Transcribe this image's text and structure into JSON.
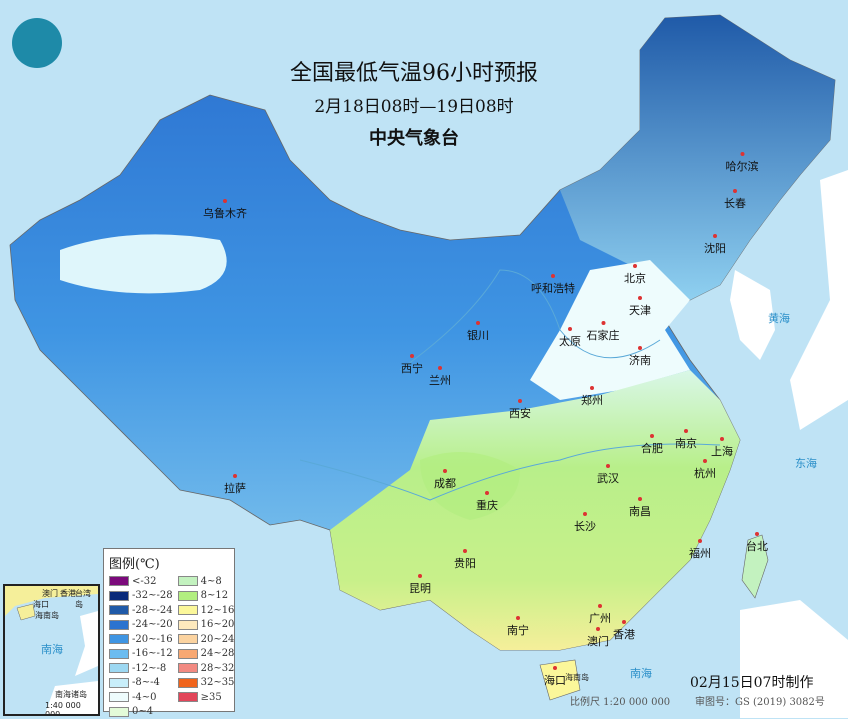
{
  "header": {
    "title": "全国最低气温96小时预报",
    "period": "2月18日08时—19日08时",
    "agency": "中央气象台"
  },
  "logo": {
    "icon": "cma-logo"
  },
  "cities": [
    {
      "name": "乌鲁木齐"
    },
    {
      "name": "哈尔滨"
    },
    {
      "name": "长春"
    },
    {
      "name": "沈阳"
    },
    {
      "name": "北京"
    },
    {
      "name": "天津"
    },
    {
      "name": "呼和浩特"
    },
    {
      "name": "银川"
    },
    {
      "name": "太原"
    },
    {
      "name": "石家庄"
    },
    {
      "name": "济南"
    },
    {
      "name": "西宁"
    },
    {
      "name": "兰州"
    },
    {
      "name": "郑州"
    },
    {
      "name": "西安"
    },
    {
      "name": "合肥"
    },
    {
      "name": "南京"
    },
    {
      "name": "上海"
    },
    {
      "name": "杭州"
    },
    {
      "name": "拉萨"
    },
    {
      "name": "成都"
    },
    {
      "name": "武汉"
    },
    {
      "name": "重庆"
    },
    {
      "name": "南昌"
    },
    {
      "name": "长沙"
    },
    {
      "name": "福州"
    },
    {
      "name": "台北"
    },
    {
      "name": "贵阳"
    },
    {
      "name": "昆明"
    },
    {
      "name": "广州"
    },
    {
      "name": "南宁"
    },
    {
      "name": "澳门"
    },
    {
      "name": "香港"
    },
    {
      "name": "海口"
    }
  ],
  "seas": [
    "黄海",
    "东海",
    "南海",
    "海南岛"
  ],
  "legend": {
    "title": "图例(℃)",
    "items": [
      {
        "label": "<-32",
        "color": "#7b0a7b"
      },
      {
        "label": "-32~-28",
        "color": "#0a2a7a"
      },
      {
        "label": "-28~-24",
        "color": "#1f5aa8"
      },
      {
        "label": "-24~-20",
        "color": "#2b73cf"
      },
      {
        "label": "-20~-16",
        "color": "#3f95e3"
      },
      {
        "label": "-16~-12",
        "color": "#6cbcf0"
      },
      {
        "label": "-12~-8",
        "color": "#9dd8f2"
      },
      {
        "label": "-8~-4",
        "color": "#c8eefa"
      },
      {
        "label": "-4~0",
        "color": "#eefcfd"
      },
      {
        "label": "0~4",
        "color": "#e3fbd8"
      },
      {
        "label": "4~8",
        "color": "#c3f2bf"
      },
      {
        "label": "8~12",
        "color": "#b2ee80"
      },
      {
        "label": "12~16",
        "color": "#fbf79a"
      },
      {
        "label": "16~20",
        "color": "#fde9bd"
      },
      {
        "label": "20~24",
        "color": "#fbd3a0"
      },
      {
        "label": "24~28",
        "color": "#f8a872"
      },
      {
        "label": "28~32",
        "color": "#f28a82"
      },
      {
        "label": "32~35",
        "color": "#f0641c"
      },
      {
        "label": "≥35",
        "color": "#e2465a"
      }
    ]
  },
  "inset": {
    "labels": [
      "澳门",
      "香港",
      "台湾岛",
      "海口",
      "海南岛",
      "南海",
      "南海诸岛"
    ],
    "scale": "1:40 000 000"
  },
  "footer": {
    "made": "02月15日07时制作",
    "scale": "比例尺 1:20 000 000",
    "review": "审图号：GS (2019) 3082号"
  }
}
